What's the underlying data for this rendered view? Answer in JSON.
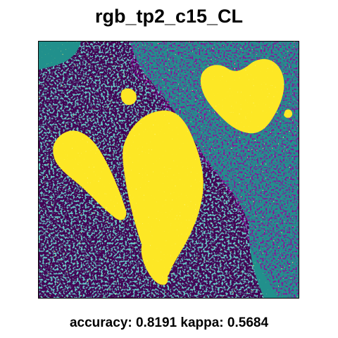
{
  "figure": {
    "title": "rgb_tp2_c15_CL",
    "caption": "accuracy: 0.8191 kappa: 0.5684"
  },
  "palette": {
    "class_1": "#440154",
    "class_2": "#21908C",
    "class_3": "#FDE725"
  }
}
